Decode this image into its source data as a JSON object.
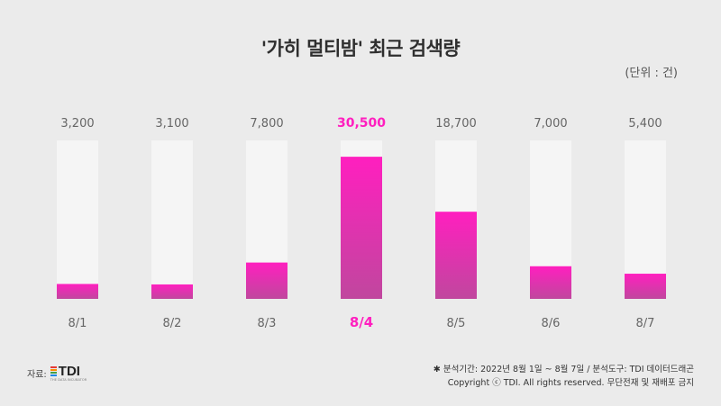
{
  "title": "'가히 멀티밤' 최근 검색량",
  "unit_label": "(단위 : 건)",
  "colors": {
    "bar_top": "#ff1fbf",
    "bar_bottom": "#c0479e",
    "track": "#f5f5f5",
    "highlight": "#ff1fbf",
    "label": "#666666"
  },
  "chart_data": {
    "type": "bar",
    "categories": [
      "8/1",
      "8/2",
      "8/3",
      "8/4",
      "8/5",
      "8/6",
      "8/7"
    ],
    "values": [
      3200,
      3100,
      7800,
      30500,
      18700,
      7000,
      5400
    ],
    "value_labels": [
      "3,200",
      "3,100",
      "7,800",
      "30,500",
      "18,700",
      "7,000",
      "5,400"
    ],
    "highlight_index": 3,
    "title": "'가히 멀티밤' 최근 검색량",
    "xlabel": "",
    "ylabel": "",
    "ylim": [
      0,
      34000
    ],
    "grid": false,
    "legend": "none"
  },
  "source": {
    "prefix": "자료:",
    "logo_text": "TDI",
    "logo_sub": "THE DATA INCUBATOR"
  },
  "footer": {
    "line1": "✱ 분석기간: 2022년 8월 1일 ~ 8월 7일  / 분석도구: TDI 데이터드래곤",
    "line2": "Copyright ⓒ TDI. All rights reserved. 무단전재 및 재배포 금지"
  }
}
